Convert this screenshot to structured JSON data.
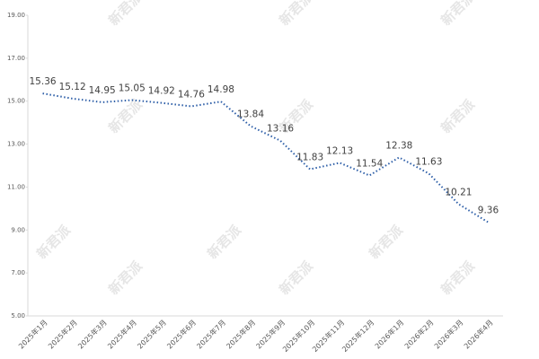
{
  "chart_data": {
    "type": "line",
    "watermark": "新君派",
    "categories": [
      "2025年1月",
      "2025年2月",
      "2025年3月",
      "2025年4月",
      "2025年5月",
      "2025年6月",
      "2025年7月",
      "2025年8月",
      "2025年9月",
      "2025年10月",
      "2025年11月",
      "2025年12月",
      "2026年1月",
      "2026年2月",
      "2026年3月",
      "2026年4月"
    ],
    "series": [
      {
        "color": "#2e5fa8",
        "values": [
          15.36,
          15.12,
          14.95,
          15.05,
          14.92,
          14.76,
          14.98,
          13.84,
          13.16,
          11.83,
          12.13,
          11.54,
          12.38,
          11.63,
          10.21,
          9.36
        ]
      }
    ],
    "ylim": [
      5,
      19
    ],
    "yticks": [
      {
        "value": 5,
        "label": "5.00"
      },
      {
        "value": 7,
        "label": "7.00"
      },
      {
        "value": 9,
        "label": "9.00"
      },
      {
        "value": 11,
        "label": "11.00"
      },
      {
        "value": 13,
        "label": "13.00"
      },
      {
        "value": 15,
        "label": "15.00"
      },
      {
        "value": 17,
        "label": "17.00"
      },
      {
        "value": 19,
        "label": "19.00"
      }
    ],
    "grid": false
  }
}
